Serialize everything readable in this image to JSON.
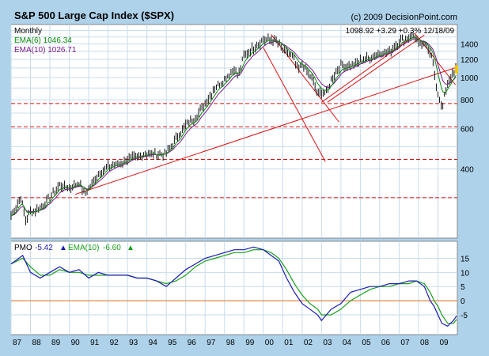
{
  "header": {
    "title": "S&P 500 Large Cap Index ($SPX)",
    "copyright": "(c) 2009 DecisionPoint.com",
    "period": "Monthly",
    "quote": "1098.92  +3.29  +0.3%  12/18/09",
    "ema_short_label": "EMA(6) 1046.34",
    "ema_long_label": "EMA(10) 1026.71"
  },
  "colors": {
    "frame": "#aed2ea",
    "panel": "#ffffff",
    "grid": "#c7dcee",
    "price_bar": "#111111",
    "ema_short": "#0a8a0a",
    "ema_long": "#7a1a8a",
    "trendline": "#dd1111",
    "pmo_line": "#1c1cb4",
    "pmo_ema": "#18a018",
    "zero_line": "#e07020",
    "highlight": "#f0c800"
  },
  "chart_data": [
    {
      "type": "line",
      "name_of_panel": "price",
      "x_range": [
        1987.0,
        2010.0
      ],
      "y_scale": "log",
      "ylim": [
        200,
        1700
      ],
      "y_ticks": [
        400,
        600,
        800,
        1000,
        1200,
        1400
      ],
      "x_ticks": [
        "87",
        "88",
        "89",
        "90",
        "91",
        "92",
        "93",
        "94",
        "95",
        "96",
        "97",
        "98",
        "99",
        "00",
        "01",
        "02",
        "03",
        "04",
        "05",
        "06",
        "07",
        "08",
        "09"
      ],
      "grid": true,
      "series": [
        {
          "name": "",
          "style": "monthly-bars",
          "x": [
            1987.0,
            1987.5,
            1987.75,
            1988.0,
            1988.5,
            1989.0,
            1989.5,
            1990.0,
            1990.5,
            1990.8,
            1991.0,
            1991.5,
            1992.0,
            1992.5,
            1993.0,
            1993.5,
            1994.0,
            1994.5,
            1995.0,
            1995.5,
            1996.0,
            1996.5,
            1997.0,
            1997.5,
            1998.0,
            1998.5,
            1998.7,
            1999.0,
            1999.5,
            2000.0,
            2000.4,
            2000.7,
            2001.0,
            2001.5,
            2001.8,
            2002.0,
            2002.5,
            2002.8,
            2003.0,
            2003.3,
            2003.5,
            2004.0,
            2004.5,
            2005.0,
            2005.5,
            2006.0,
            2006.5,
            2007.0,
            2007.5,
            2007.8,
            2008.0,
            2008.4,
            2008.7,
            2008.9,
            2009.1,
            2009.2,
            2009.5,
            2009.8,
            2009.96
          ],
          "values": [
            250,
            300,
            240,
            260,
            270,
            300,
            340,
            330,
            350,
            310,
            330,
            380,
            410,
            420,
            440,
            450,
            470,
            460,
            470,
            540,
            620,
            670,
            770,
            900,
            980,
            1100,
            1000,
            1250,
            1350,
            1460,
            1460,
            1430,
            1320,
            1230,
            1080,
            1130,
            990,
            850,
            870,
            860,
            980,
            1130,
            1120,
            1180,
            1220,
            1280,
            1300,
            1440,
            1500,
            1520,
            1400,
            1380,
            1250,
            900,
            800,
            740,
            930,
            1060,
            1098
          ]
        }
      ],
      "horizontal_levels": [
        300,
        440,
        610,
        770
      ],
      "trendlines": [
        {
          "x": [
            1990.3,
            2010.0
          ],
          "y": [
            310,
            1110
          ]
        },
        {
          "x": [
            2000.4,
            2003.9
          ],
          "y": [
            1540,
            640
          ]
        },
        {
          "x": [
            2000.0,
            2003.2
          ],
          "y": [
            1350,
            430
          ]
        },
        {
          "x": [
            2003.0,
            2007.6
          ],
          "y": [
            780,
            1480
          ]
        },
        {
          "x": [
            2003.3,
            2008.3
          ],
          "y": [
            780,
            1530
          ]
        },
        {
          "x": [
            2007.8,
            2009.9
          ],
          "y": [
            1560,
            930
          ]
        }
      ]
    },
    {
      "type": "line",
      "name_of_panel": "PMO",
      "title": "PMO",
      "labels": {
        "pmo": "-5.42",
        "ema": "EMA(10)",
        "ema_value": "-6.60"
      },
      "x_range": [
        1987.0,
        2010.0
      ],
      "ylim": [
        -12,
        21
      ],
      "y_ticks": [
        "15",
        "10",
        "5",
        "0",
        "-5"
      ],
      "zero_line": 0,
      "series": [
        {
          "name": "PMO",
          "x": [
            1987.0,
            1987.6,
            1988.0,
            1988.5,
            1989.0,
            1989.5,
            1990.0,
            1990.5,
            1991.0,
            1991.5,
            1992.0,
            1992.5,
            1993.0,
            1993.5,
            1994.0,
            1994.5,
            1995.0,
            1995.5,
            1996.0,
            1996.5,
            1997.0,
            1997.5,
            1998.0,
            1998.5,
            1999.0,
            1999.5,
            2000.0,
            2000.4,
            2000.8,
            2001.2,
            2001.6,
            2002.0,
            2002.4,
            2002.8,
            2003.0,
            2003.5,
            2004.0,
            2004.5,
            2005.0,
            2005.5,
            2006.0,
            2006.5,
            2007.0,
            2007.5,
            2007.9,
            2008.3,
            2008.6,
            2008.8,
            2009.0,
            2009.2,
            2009.5,
            2009.8,
            2009.96
          ],
          "values": [
            13,
            16,
            10,
            8,
            10,
            12,
            10,
            11,
            8,
            10,
            9,
            9,
            9,
            8,
            8,
            7,
            5,
            8,
            11,
            13,
            15,
            16,
            17,
            18,
            18,
            19,
            18,
            16,
            14,
            8,
            3,
            -1,
            -3,
            -5,
            -7,
            -3,
            -1,
            3,
            4,
            5,
            5,
            6,
            6,
            7,
            7,
            5,
            0,
            -2,
            -5,
            -8,
            -9,
            -7,
            -5.4
          ]
        },
        {
          "name": "EMA(10)",
          "x": [
            1987.0,
            1987.6,
            1988.0,
            1988.5,
            1989.0,
            1989.5,
            1990.0,
            1990.5,
            1991.0,
            1991.5,
            1992.0,
            1992.5,
            1993.0,
            1993.5,
            1994.0,
            1994.5,
            1995.0,
            1995.5,
            1996.0,
            1996.5,
            1997.0,
            1997.5,
            1998.0,
            1998.5,
            1999.0,
            1999.5,
            2000.0,
            2000.4,
            2000.8,
            2001.2,
            2001.6,
            2002.0,
            2002.4,
            2002.8,
            2003.0,
            2003.5,
            2004.0,
            2004.5,
            2005.0,
            2005.5,
            2006.0,
            2006.5,
            2007.0,
            2007.5,
            2007.9,
            2008.3,
            2008.6,
            2008.8,
            2009.0,
            2009.2,
            2009.5,
            2009.8,
            2009.96
          ],
          "values": [
            13,
            15,
            12,
            9,
            9,
            11,
            10,
            10,
            9,
            9,
            9,
            9,
            9,
            8,
            8,
            7,
            6,
            7,
            9,
            12,
            14,
            15,
            16,
            17,
            17,
            18,
            18,
            17,
            15,
            11,
            6,
            2,
            -1,
            -3,
            -5,
            -5,
            -3,
            0,
            2,
            4,
            5,
            5,
            6,
            6,
            7,
            6,
            3,
            0,
            -2,
            -5,
            -8,
            -8,
            -6.6
          ]
        }
      ]
    }
  ]
}
